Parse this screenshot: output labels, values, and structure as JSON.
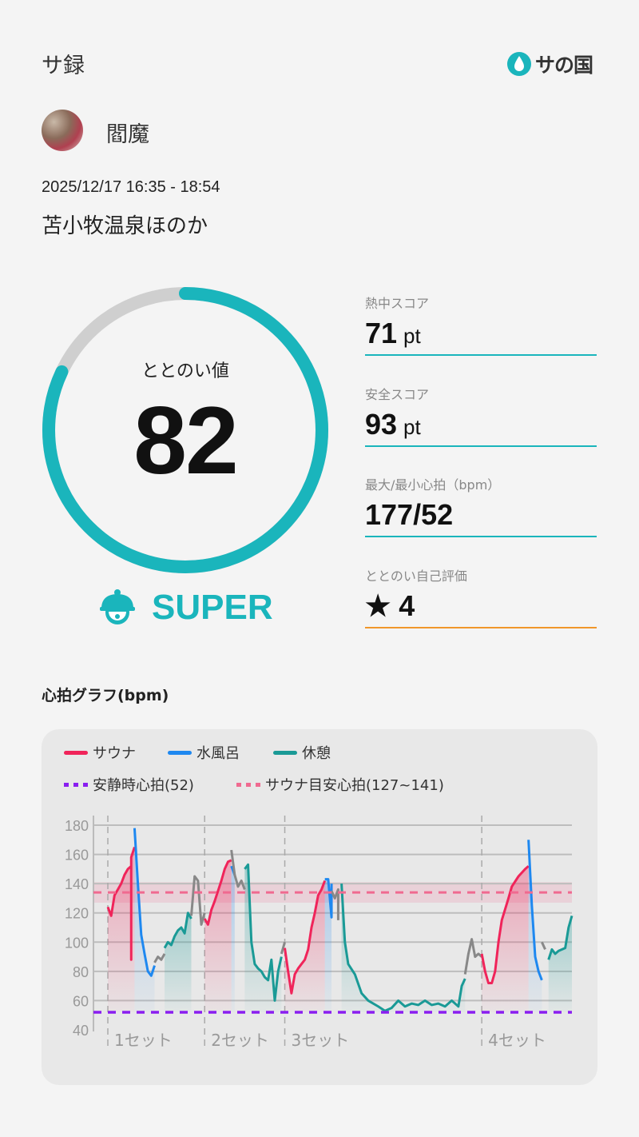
{
  "header": {
    "title": "サ録",
    "logo_text": "サの国",
    "logo_icon": "water-drop-icon"
  },
  "user": {
    "name": "閻魔"
  },
  "session": {
    "datetime": "2025/12/17 16:35 - 18:54",
    "venue": "苫小牧温泉ほのか"
  },
  "score": {
    "label": "ととのい値",
    "value": 82,
    "max": 100,
    "rank": "SUPER",
    "rank_icon": "sauna-hat-face-icon"
  },
  "stats": [
    {
      "label": "熱中スコア",
      "value": "71",
      "unit": "pt"
    },
    {
      "label": "安全スコア",
      "value": "93",
      "unit": "pt"
    },
    {
      "label": "最大/最小心拍（bpm）",
      "value": "177/52",
      "unit": ""
    },
    {
      "label": "ととのい自己評価",
      "value": "★ 4",
      "unit": ""
    }
  ],
  "colors": {
    "accent": "#1ab5bc",
    "sauna": "#f0245a",
    "cold": "#1e88f0",
    "rest": "#1a9a96",
    "other": "#888888",
    "resting_line": "#8a1ef0",
    "target_line": "#f06a90",
    "self_rating_line": "#f0962a"
  },
  "graph": {
    "title": "心拍グラフ(bpm)"
  },
  "chart_data": {
    "type": "line",
    "ylim": [
      40,
      180
    ],
    "yticks": [
      180,
      160,
      140,
      120,
      100,
      80,
      60,
      40
    ],
    "grid": true,
    "legend_placement": "top",
    "legend": [
      {
        "label": "サウナ",
        "key": "sauna",
        "style": "solid"
      },
      {
        "label": "水風呂",
        "key": "cold",
        "style": "solid"
      },
      {
        "label": "休憩",
        "key": "rest",
        "style": "solid"
      },
      {
        "label": "安静時心拍(52)",
        "key": "resting_line",
        "style": "dotted"
      },
      {
        "label": "サウナ目安心拍(127~141)",
        "key": "target_line",
        "style": "dotted"
      }
    ],
    "resting_hr": 52,
    "target_range": [
      127,
      141
    ],
    "time_range": [
      "16:35",
      "18:54"
    ],
    "sets": [
      {
        "label": "1セット",
        "start": "16:35"
      },
      {
        "label": "2セット",
        "start": "17:04"
      },
      {
        "label": "3セット",
        "start": "17:28"
      },
      {
        "label": "4セット",
        "start": "18:27"
      }
    ],
    "segments": [
      {
        "type": "sauna",
        "points": [
          [
            "16:35",
            124
          ],
          [
            "16:36",
            118
          ],
          [
            "16:37",
            132
          ],
          [
            "16:38",
            136
          ],
          [
            "16:39",
            140
          ],
          [
            "16:40",
            146
          ],
          [
            "16:41",
            150
          ],
          [
            "16:42",
            152
          ],
          [
            "16:42",
            88
          ],
          [
            "16:42",
            158
          ],
          [
            "16:43",
            165
          ]
        ]
      },
      {
        "type": "cold",
        "points": [
          [
            "16:43",
            178
          ],
          [
            "16:44",
            140
          ],
          [
            "16:45",
            105
          ],
          [
            "16:46",
            92
          ],
          [
            "16:47",
            80
          ],
          [
            "16:48",
            77
          ],
          [
            "16:49",
            84
          ]
        ]
      },
      {
        "type": "other",
        "points": [
          [
            "16:49",
            86
          ],
          [
            "16:50",
            90
          ],
          [
            "16:51",
            88
          ],
          [
            "16:52",
            92
          ]
        ]
      },
      {
        "type": "rest",
        "points": [
          [
            "16:52",
            96
          ],
          [
            "16:53",
            100
          ],
          [
            "16:54",
            98
          ],
          [
            "16:55",
            104
          ],
          [
            "16:56",
            108
          ],
          [
            "16:57",
            110
          ],
          [
            "16:58",
            106
          ],
          [
            "16:59",
            120
          ],
          [
            "17:00",
            116
          ]
        ]
      },
      {
        "type": "other",
        "points": [
          [
            "17:00",
            118
          ],
          [
            "17:01",
            145
          ],
          [
            "17:02",
            142
          ],
          [
            "17:03",
            112
          ],
          [
            "17:04",
            120
          ]
        ]
      },
      {
        "type": "sauna",
        "points": [
          [
            "17:04",
            116
          ],
          [
            "17:05",
            112
          ],
          [
            "17:06",
            122
          ],
          [
            "17:07",
            128
          ],
          [
            "17:08",
            135
          ],
          [
            "17:09",
            142
          ],
          [
            "17:10",
            150
          ],
          [
            "17:11",
            155
          ],
          [
            "17:12",
            156
          ]
        ]
      },
      {
        "type": "cold",
        "points": [
          [
            "17:12",
            152
          ],
          [
            "17:13",
            146
          ]
        ]
      },
      {
        "type": "other",
        "points": [
          [
            "17:12",
            163
          ],
          [
            "17:13",
            146
          ],
          [
            "17:14",
            138
          ],
          [
            "17:15",
            142
          ],
          [
            "17:16",
            136
          ]
        ]
      },
      {
        "type": "rest",
        "points": [
          [
            "17:16",
            150
          ],
          [
            "17:17",
            153
          ],
          [
            "17:18",
            100
          ],
          [
            "17:19",
            85
          ],
          [
            "17:20",
            82
          ],
          [
            "17:21",
            80
          ],
          [
            "17:22",
            76
          ],
          [
            "17:23",
            74
          ],
          [
            "17:24",
            88
          ],
          [
            "17:25",
            60
          ],
          [
            "17:26",
            80
          ],
          [
            "17:27",
            90
          ]
        ]
      },
      {
        "type": "other",
        "points": [
          [
            "17:27",
            92
          ],
          [
            "17:28",
            100
          ]
        ]
      },
      {
        "type": "sauna",
        "points": [
          [
            "17:28",
            96
          ],
          [
            "17:29",
            80
          ],
          [
            "17:30",
            65
          ],
          [
            "17:31",
            78
          ],
          [
            "17:32",
            82
          ],
          [
            "17:33",
            85
          ],
          [
            "17:34",
            88
          ],
          [
            "17:35",
            95
          ],
          [
            "17:36",
            110
          ],
          [
            "17:37",
            120
          ],
          [
            "17:38",
            132
          ],
          [
            "17:39",
            136
          ],
          [
            "17:40",
            142
          ]
        ]
      },
      {
        "type": "cold",
        "points": [
          [
            "17:40",
            143
          ],
          [
            "17:41",
            143
          ],
          [
            "17:42",
            117
          ],
          [
            "17:42",
            140
          ]
        ]
      },
      {
        "type": "other",
        "points": [
          [
            "17:42",
            135
          ],
          [
            "17:43",
            130
          ],
          [
            "17:44",
            136
          ],
          [
            "17:44",
            115
          ]
        ]
      },
      {
        "type": "rest",
        "points": [
          [
            "17:45",
            140
          ],
          [
            "17:46",
            100
          ],
          [
            "17:47",
            85
          ],
          [
            "17:49",
            78
          ],
          [
            "17:51",
            65
          ],
          [
            "17:53",
            60
          ],
          [
            "17:56",
            56
          ],
          [
            "17:58",
            53
          ],
          [
            "18:00",
            55
          ],
          [
            "18:02",
            60
          ],
          [
            "18:04",
            56
          ],
          [
            "18:06",
            58
          ],
          [
            "18:08",
            57
          ],
          [
            "18:10",
            60
          ],
          [
            "18:12",
            57
          ],
          [
            "18:14",
            58
          ],
          [
            "18:16",
            56
          ],
          [
            "18:18",
            60
          ],
          [
            "18:20",
            56
          ],
          [
            "18:21",
            70
          ],
          [
            "18:22",
            75
          ]
        ]
      },
      {
        "type": "other",
        "points": [
          [
            "18:22",
            78
          ],
          [
            "18:23",
            92
          ],
          [
            "18:24",
            102
          ],
          [
            "18:25",
            90
          ],
          [
            "18:26",
            92
          ],
          [
            "18:27",
            90
          ]
        ]
      },
      {
        "type": "sauna",
        "points": [
          [
            "18:27",
            92
          ],
          [
            "18:28",
            80
          ],
          [
            "18:29",
            72
          ],
          [
            "18:30",
            72
          ],
          [
            "18:31",
            80
          ],
          [
            "18:32",
            100
          ],
          [
            "18:33",
            115
          ],
          [
            "18:35",
            130
          ],
          [
            "18:36",
            138
          ],
          [
            "18:38",
            145
          ],
          [
            "18:40",
            150
          ],
          [
            "18:41",
            152
          ]
        ]
      },
      {
        "type": "cold",
        "points": [
          [
            "18:41",
            170
          ],
          [
            "18:42",
            125
          ],
          [
            "18:43",
            90
          ],
          [
            "18:44",
            80
          ],
          [
            "18:45",
            74
          ]
        ]
      },
      {
        "type": "other",
        "points": [
          [
            "18:45",
            100
          ],
          [
            "18:46",
            95
          ]
        ]
      },
      {
        "type": "rest",
        "points": [
          [
            "18:47",
            88
          ],
          [
            "18:48",
            95
          ],
          [
            "18:49",
            92
          ],
          [
            "18:50",
            94
          ],
          [
            "18:52",
            96
          ],
          [
            "18:53",
            110
          ],
          [
            "18:54",
            118
          ]
        ]
      }
    ]
  }
}
